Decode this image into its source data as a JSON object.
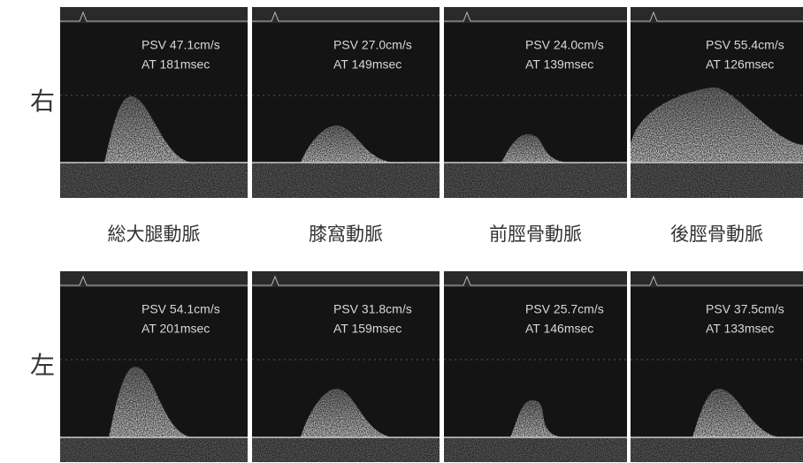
{
  "rows": [
    {
      "label": "右",
      "panels": [
        {
          "psv": "PSV 47.1cm/s",
          "at": "AT 181msec"
        },
        {
          "psv": "PSV 27.0cm/s",
          "at": "AT 149msec"
        },
        {
          "psv": "PSV 24.0cm/s",
          "at": "AT 139msec"
        },
        {
          "psv": "PSV 55.4cm/s",
          "at": "AT 126msec"
        }
      ]
    },
    {
      "label": "左",
      "panels": [
        {
          "psv": "PSV 54.1cm/s",
          "at": "AT 201msec"
        },
        {
          "psv": "PSV 31.8cm/s",
          "at": "AT 159msec"
        },
        {
          "psv": "PSV 25.7cm/s",
          "at": "AT 146msec"
        },
        {
          "psv": "PSV 37.5cm/s",
          "at": "AT 133msec"
        }
      ]
    }
  ],
  "columns": [
    "総大腿動脈",
    "膝窩動脈",
    "前脛骨動脈",
    "後脛骨動脈"
  ]
}
